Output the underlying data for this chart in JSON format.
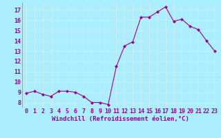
{
  "x": [
    0,
    1,
    2,
    3,
    4,
    5,
    6,
    7,
    8,
    9,
    10,
    11,
    12,
    13,
    14,
    15,
    16,
    17,
    18,
    19,
    20,
    21,
    22,
    23
  ],
  "y": [
    8.9,
    9.1,
    8.8,
    8.6,
    9.1,
    9.1,
    9.0,
    8.6,
    8.0,
    8.0,
    7.8,
    11.5,
    13.5,
    13.9,
    16.3,
    16.3,
    16.8,
    17.3,
    15.9,
    16.1,
    15.4,
    15.1,
    14.0,
    13.0
  ],
  "line_color": "#990099",
  "marker": "D",
  "marker_size": 2,
  "bg_color": "#aaeeff",
  "grid_color": "#cceeee",
  "xlabel": "Windchill (Refroidissement éolien,°C)",
  "xlabel_color": "#990099",
  "ylabel_ticks": [
    8,
    9,
    10,
    11,
    12,
    13,
    14,
    15,
    16,
    17
  ],
  "xlim": [
    -0.5,
    23.5
  ],
  "ylim": [
    7.5,
    17.7
  ],
  "tick_color": "#990099",
  "axis_label_fontsize": 6.5,
  "tick_fontsize": 6
}
